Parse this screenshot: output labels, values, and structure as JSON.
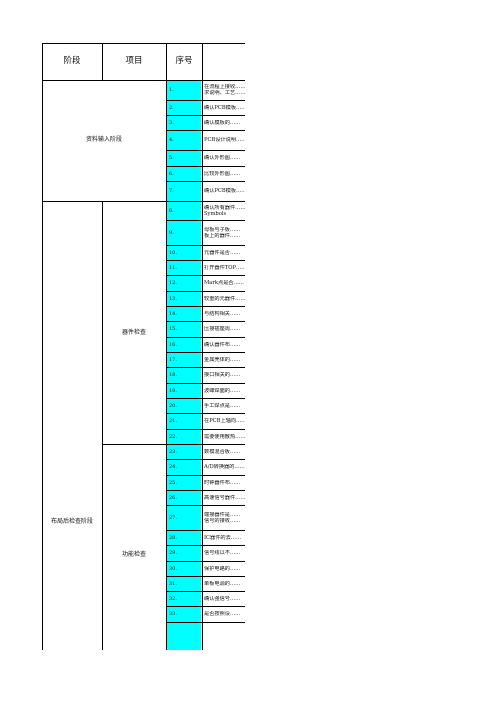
{
  "colors": {
    "highlight": "#00ffff",
    "line": "#000000"
  },
  "header": {
    "stage": "阶段",
    "item": "项目",
    "seq": "序号"
  },
  "groups": {
    "input_stage": "资料输入阶段",
    "post_layout_stage": "布局后检查阶段",
    "component_check": "器件检查",
    "function_check": "功能检查"
  },
  "rows": [
    {
      "num": "1.",
      "text": "在流程上接收……",
      "text2": "求说明、工艺……"
    },
    {
      "num": "2.",
      "text": "确认PCB模板……"
    },
    {
      "num": "3.",
      "text": "确认模板的……"
    },
    {
      "num": "4.",
      "text": "PCB设计说明……"
    },
    {
      "num": "5.",
      "text": "确认外形图……"
    },
    {
      "num": "6.",
      "text": "比较外形图……"
    },
    {
      "num": "7.",
      "text": "确认PCB模板……"
    },
    {
      "num": "8.",
      "text": "确认所有器件……",
      "text2": "Symbols"
    },
    {
      "num": "9.",
      "text": "母板与子板……",
      "text2": "板上的器件……"
    },
    {
      "num": "10.",
      "text": "元器件是否……"
    },
    {
      "num": "11.",
      "text": "打开器件TOP……"
    },
    {
      "num": "12.",
      "text": "Mark点是否……"
    },
    {
      "num": "13.",
      "text": "较重的元器件……"
    },
    {
      "num": "14.",
      "text": "与结构相关……"
    },
    {
      "num": "15.",
      "text": "压接插座周……"
    },
    {
      "num": "16.",
      "text": "确认器件布……"
    },
    {
      "num": "17.",
      "text": "金属壳体的……"
    },
    {
      "num": "18.",
      "text": "接口相关的……"
    },
    {
      "num": "19.",
      "text": "波峰焊面的……"
    },
    {
      "num": "20.",
      "text": "手工焊点是……"
    },
    {
      "num": "21.",
      "text": "在PCB上轴向……"
    },
    {
      "num": "22.",
      "text": "需要使用散热……"
    },
    {
      "num": "23.",
      "text": "数模混合板……"
    },
    {
      "num": "24.",
      "text": "A/D转换器的……"
    },
    {
      "num": "25.",
      "text": "时钟器件布……"
    },
    {
      "num": "26.",
      "text": "高速信号器件……"
    },
    {
      "num": "27.",
      "text": "端接器件是……",
      "text2": "信号的接收……"
    },
    {
      "num": "28.",
      "text": "IC器件的去……"
    },
    {
      "num": "29.",
      "text": "信号线以不……"
    },
    {
      "num": "30.",
      "text": "保护电路的……"
    },
    {
      "num": "31.",
      "text": "单板电源的……"
    },
    {
      "num": "32.",
      "text": "确认强信号……"
    },
    {
      "num": "33.",
      "text": "是否按照设……"
    }
  ]
}
